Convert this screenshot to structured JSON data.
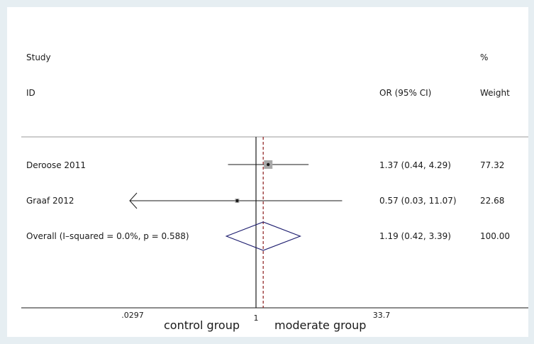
{
  "chart_data": {
    "type": "forest",
    "columns": {
      "study_header_line1": "Study",
      "study_header_line2": "ID",
      "estimate_header": "OR (95% CI)",
      "weight_header_line1": "%",
      "weight_header_line2": "Weight"
    },
    "studies": [
      {
        "label": "Deroose 2011",
        "or": 1.37,
        "ci_low": 0.44,
        "ci_high": 4.29,
        "estimate_text": "1.37 (0.44, 4.29)",
        "weight": "77.32"
      },
      {
        "label": "Graaf 2012",
        "or": 0.57,
        "ci_low": 0.03,
        "ci_high": 11.07,
        "ci_low_arrow": true,
        "estimate_text": "0.57 (0.03, 11.07)",
        "weight": "22.68"
      }
    ],
    "overall": {
      "label": "Overall",
      "heterogeneity": "(I–squared = 0.0%, p = 0.588)",
      "or": 1.19,
      "ci_low": 0.42,
      "ci_high": 3.39,
      "estimate_text": "1.19 (0.42, 3.39)",
      "weight": "100.00"
    },
    "x_axis": {
      "scale": "log",
      "range": [
        0.0297,
        33.7
      ],
      "ticks": [
        ".0297",
        "1",
        "33.7"
      ],
      "null_line": 1
    },
    "group_labels": {
      "left": "control group",
      "right": "moderate group"
    },
    "colors": {
      "overall_line": "#8b1a1a",
      "diamond": "#1c1c6e",
      "box": "#a8a8a8",
      "line": "#1a1a1a",
      "background": "#e6eef2"
    }
  }
}
